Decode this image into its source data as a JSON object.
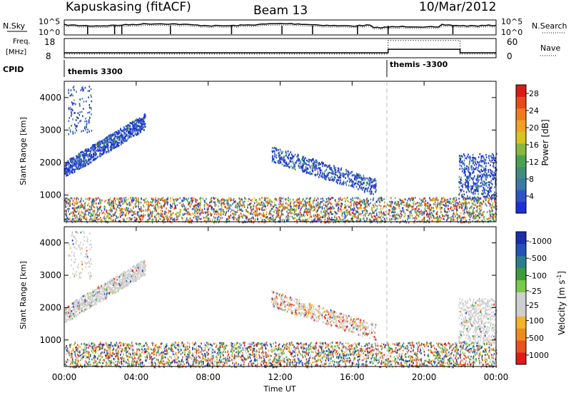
{
  "header": {
    "station": "Kapuskasing (fitACF)",
    "beam": "Beam 13",
    "date": "10/Mar/2012"
  },
  "status_panels": {
    "nsky_label": "N.Sky",
    "nsearch_label": "N.Search",
    "noise_ticks": [
      "10^5",
      "10^0"
    ],
    "freq_label": "Freq.",
    "freq_unit": "[MHz]",
    "freq_ticks": [
      "18",
      "8"
    ],
    "nave_label": "Nave",
    "nave_ticks": [
      "60",
      "0"
    ],
    "cpid_label": "CPID",
    "cpid_segments": [
      {
        "label": "themis 3300",
        "start_hour": 0
      },
      {
        "label": "themis -3300",
        "start_hour": 18
      }
    ],
    "freq_series": {
      "hours": [
        0,
        18,
        18,
        22,
        22,
        24
      ],
      "mhz": [
        10.6,
        10.6,
        12.4,
        12.4,
        10.6,
        10.6
      ]
    },
    "nave_series": {
      "hours": [
        0,
        18,
        18,
        22,
        22,
        24
      ],
      "values": [
        12,
        12,
        54,
        54,
        12,
        12
      ]
    }
  },
  "chart_data": [
    {
      "type": "heatmap",
      "name": "power-panel",
      "ylabel": "Slant Range [km]",
      "y_ticks": [
        1000,
        2000,
        3000,
        4000
      ],
      "ylim": [
        180,
        4500
      ],
      "xlim": [
        0,
        24
      ],
      "colorbar": {
        "label": "Power [dB]",
        "ticks": [
          4,
          8,
          12,
          16,
          20,
          24,
          28
        ],
        "range": [
          0,
          30
        ]
      },
      "scatter_regions": [
        {
          "hours": [
            0,
            24
          ],
          "range_km": [
            180,
            1000
          ],
          "level": "mixed"
        },
        {
          "hours": [
            0,
            4.5
          ],
          "range_km": [
            1500,
            3300
          ],
          "level": "low"
        },
        {
          "hours": [
            11.5,
            17.3
          ],
          "range_km": [
            1200,
            2500
          ],
          "level": "low"
        },
        {
          "hours": [
            21.9,
            24
          ],
          "range_km": [
            900,
            2300
          ],
          "level": "low"
        }
      ]
    },
    {
      "type": "heatmap",
      "name": "velocity-panel",
      "ylabel": "Slant Range [km]",
      "y_ticks": [
        1000,
        2000,
        3000,
        4000
      ],
      "ylim": [
        180,
        4500
      ],
      "xlim": [
        0,
        24
      ],
      "colorbar": {
        "label": "Velocity [m s^-1]",
        "ticks": [
          1000,
          500,
          100,
          25,
          -25,
          -100,
          -500,
          -1000
        ]
      },
      "x_ticks": [
        "00:00",
        "04:00",
        "08:00",
        "12:00",
        "16:00",
        "20:00",
        "00:00"
      ],
      "xlabel": "Time UT"
    }
  ]
}
